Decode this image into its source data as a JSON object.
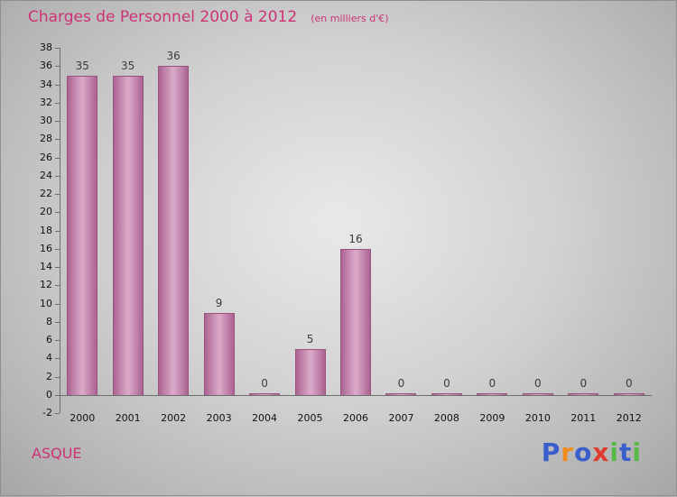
{
  "header": {
    "title": "Charges de Personnel 2000 à 2012",
    "subtitle": "(en milliers d'€)",
    "title_color": "#cc3377"
  },
  "chart_data": {
    "type": "bar",
    "title": "Charges de Personnel 2000 à 2012",
    "subtitle": "(en milliers d'€)",
    "categories": [
      "2000",
      "2001",
      "2002",
      "2003",
      "2004",
      "2005",
      "2006",
      "2007",
      "2008",
      "2009",
      "2010",
      "2011",
      "2012"
    ],
    "values": [
      35,
      35,
      36,
      9,
      0,
      5,
      16,
      0,
      0,
      0,
      0,
      0,
      0
    ],
    "xlabel": "",
    "ylabel": "",
    "ylim": [
      -2,
      38
    ],
    "ytick_step": 2,
    "grid": false,
    "legend": false,
    "bar_color_edge": "#ab6392",
    "bar_color_center": "#dcabca",
    "bar_border": "#9a527f",
    "axis_color": "#6e6e6e",
    "value_label_color": "#3c3c3c"
  },
  "footer": {
    "company": "ASQUE",
    "company_color": "#cc3377",
    "logo": {
      "letters": [
        {
          "ch": "P",
          "color": "#3a5fcd"
        },
        {
          "ch": "r",
          "color": "#f28c1e"
        },
        {
          "ch": "o",
          "color": "#3a5fcd"
        },
        {
          "ch": "x",
          "color": "#e0392e"
        },
        {
          "ch": "i",
          "color": "#58b947"
        },
        {
          "ch": "t",
          "color": "#3a5fcd"
        },
        {
          "ch": "i",
          "color": "#58b947"
        }
      ]
    }
  }
}
